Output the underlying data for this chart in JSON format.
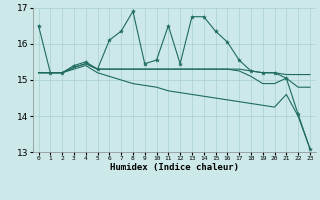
{
  "xlabel": "Humidex (Indice chaleur)",
  "ylabel": "",
  "xlim": [
    -0.5,
    23.5
  ],
  "ylim": [
    13,
    17
  ],
  "yticks": [
    13,
    14,
    15,
    16,
    17
  ],
  "xticks": [
    0,
    1,
    2,
    3,
    4,
    5,
    6,
    7,
    8,
    9,
    10,
    11,
    12,
    13,
    14,
    15,
    16,
    17,
    18,
    19,
    20,
    21,
    22,
    23
  ],
  "background_color": "#cce8e8",
  "grid_color": "#afd4d4",
  "line_color": "#1e6b5e",
  "series0": [
    16.5,
    15.2,
    15.2,
    15.4,
    15.5,
    15.3,
    16.1,
    16.35,
    16.9,
    15.45,
    15.55,
    16.5,
    15.45,
    16.75,
    16.75,
    16.35,
    16.05,
    15.55,
    15.25,
    15.2,
    15.2,
    15.05,
    14.05,
    13.1
  ],
  "series1": [
    15.2,
    15.2,
    15.2,
    15.35,
    15.45,
    15.3,
    15.3,
    15.3,
    15.3,
    15.3,
    15.3,
    15.3,
    15.3,
    15.3,
    15.3,
    15.3,
    15.3,
    15.3,
    15.25,
    15.2,
    15.2,
    15.15,
    15.15,
    15.15
  ],
  "series2": [
    15.2,
    15.2,
    15.2,
    15.35,
    15.45,
    15.3,
    15.3,
    15.3,
    15.3,
    15.3,
    15.3,
    15.3,
    15.3,
    15.3,
    15.3,
    15.3,
    15.3,
    15.25,
    15.1,
    14.9,
    14.9,
    15.05,
    14.8,
    14.8
  ],
  "series3": [
    15.2,
    15.2,
    15.2,
    15.3,
    15.4,
    15.2,
    15.1,
    15.0,
    14.9,
    14.85,
    14.8,
    14.7,
    14.65,
    14.6,
    14.55,
    14.5,
    14.45,
    14.4,
    14.35,
    14.3,
    14.25,
    14.6,
    14.0,
    13.1
  ]
}
